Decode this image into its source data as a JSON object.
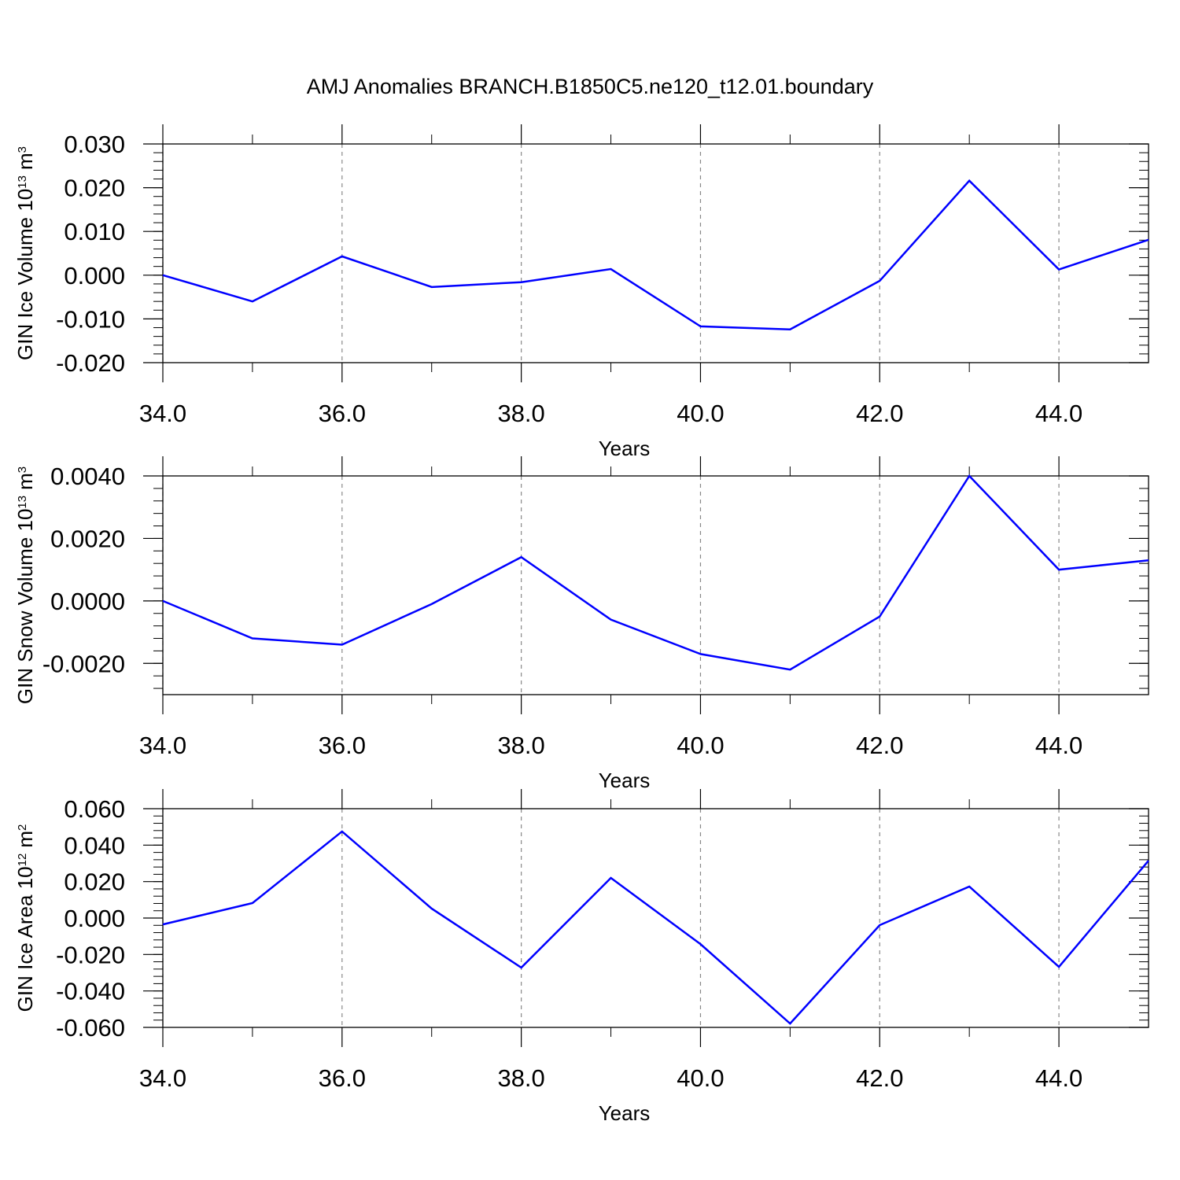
{
  "chart_data": [
    {
      "type": "line",
      "title": "AMJ Anomalies BRANCH.B1850C5.ne120_t12.01.boundary",
      "xlabel": "Years",
      "ylabel": "GIN Ice Volume 10",
      "ylabel_exponent": "13",
      "ylabel_unit": "m",
      "ylabel_unit_exponent": "3",
      "x": [
        34,
        35,
        36,
        37,
        38,
        39,
        40,
        41,
        42,
        43,
        44,
        45
      ],
      "series": [
        {
          "color": "#0000ff",
          "values": [
            0.0,
            -0.006,
            0.0043,
            -0.0027,
            -0.0016,
            0.0014,
            -0.0117,
            -0.0124,
            -0.0013,
            0.0216,
            0.0013,
            0.0081
          ]
        }
      ],
      "xlim": [
        34,
        45
      ],
      "xticks": [
        {
          "value": 34,
          "label": "34.0"
        },
        {
          "value": 36,
          "label": "36.0"
        },
        {
          "value": 38,
          "label": "38.0"
        },
        {
          "value": 40,
          "label": "40.0"
        },
        {
          "value": 42,
          "label": "42.0"
        },
        {
          "value": 44,
          "label": "44.0"
        }
      ],
      "ylim": [
        -0.02,
        0.03
      ],
      "yticks": [
        {
          "value": -0.02,
          "label": "-0.020"
        },
        {
          "value": -0.01,
          "label": "-0.010"
        },
        {
          "value": 0,
          "label": "0.000"
        },
        {
          "value": 0.01,
          "label": "0.010"
        },
        {
          "value": 0.02,
          "label": "0.020"
        },
        {
          "value": 0.03,
          "label": "0.030"
        }
      ],
      "xgrid": true
    },
    {
      "type": "line",
      "xlabel": "Years",
      "ylabel": "GIN Snow Volume 10",
      "ylabel_exponent": "13",
      "ylabel_unit": "m",
      "ylabel_unit_exponent": "3",
      "x": [
        34,
        35,
        36,
        37,
        38,
        39,
        40,
        41,
        42,
        43,
        44,
        45
      ],
      "series": [
        {
          "color": "#0000ff",
          "values": [
            0.0,
            -0.0012,
            -0.0014,
            -0.0001,
            0.0014,
            -0.0006,
            -0.0017,
            -0.0022,
            -0.0005,
            0.004,
            0.001,
            0.0013
          ]
        }
      ],
      "xlim": [
        34,
        45
      ],
      "xticks": [
        {
          "value": 34,
          "label": "34.0"
        },
        {
          "value": 36,
          "label": "36.0"
        },
        {
          "value": 38,
          "label": "38.0"
        },
        {
          "value": 40,
          "label": "40.0"
        },
        {
          "value": 42,
          "label": "42.0"
        },
        {
          "value": 44,
          "label": "44.0"
        }
      ],
      "ylim": [
        -0.003,
        0.004
      ],
      "yticks": [
        {
          "value": -0.002,
          "label": "-0.0020"
        },
        {
          "value": 0,
          "label": "0.0000"
        },
        {
          "value": 0.002,
          "label": "0.0020"
        },
        {
          "value": 0.004,
          "label": "0.0040"
        }
      ],
      "xgrid": true
    },
    {
      "type": "line",
      "xlabel": "Years",
      "ylabel": "GIN Ice Area 10",
      "ylabel_exponent": "12",
      "ylabel_unit": "m",
      "ylabel_unit_exponent": "2",
      "x": [
        34,
        35,
        36,
        37,
        38,
        39,
        40,
        41,
        42,
        43,
        44,
        45
      ],
      "series": [
        {
          "color": "#0000ff",
          "values": [
            -0.0035,
            0.0082,
            0.0475,
            0.0052,
            -0.0272,
            0.022,
            -0.0143,
            -0.0579,
            -0.0039,
            0.0173,
            -0.0268,
            0.0315
          ]
        }
      ],
      "xlim": [
        34,
        45
      ],
      "xticks": [
        {
          "value": 34,
          "label": "34.0"
        },
        {
          "value": 36,
          "label": "36.0"
        },
        {
          "value": 38,
          "label": "38.0"
        },
        {
          "value": 40,
          "label": "40.0"
        },
        {
          "value": 42,
          "label": "42.0"
        },
        {
          "value": 44,
          "label": "44.0"
        }
      ],
      "ylim": [
        -0.06,
        0.06
      ],
      "yticks": [
        {
          "value": -0.06,
          "label": "-0.060"
        },
        {
          "value": -0.04,
          "label": "-0.040"
        },
        {
          "value": -0.02,
          "label": "-0.020"
        },
        {
          "value": 0,
          "label": "0.000"
        },
        {
          "value": 0.02,
          "label": "0.020"
        },
        {
          "value": 0.04,
          "label": "0.040"
        },
        {
          "value": 0.06,
          "label": "0.060"
        }
      ],
      "xgrid": true
    }
  ]
}
